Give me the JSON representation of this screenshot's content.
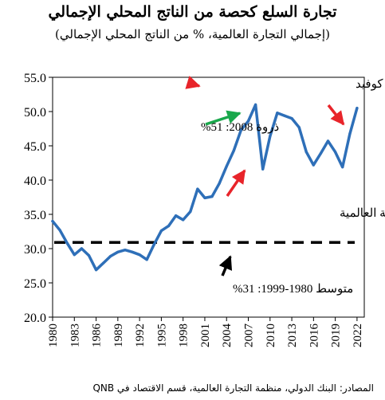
{
  "chart_data": {
    "type": "line",
    "title": "تجارة السلع كحصة من الناتج المحلي الإجمالي",
    "subtitle": "(إجمالي التجارة العالمية، % من الناتج المحلي الإجمالي)",
    "source": "المصادر: البنك الدولي، منظمة التجارة العالمية، قسم الاقتصاد في QNB",
    "ylim": [
      20,
      55
    ],
    "yticks": [
      "20.0",
      "25.0",
      "30.0",
      "35.0",
      "40.0",
      "45.0",
      "50.0",
      "55.0"
    ],
    "xlim": [
      1980,
      2023
    ],
    "xticks": [
      "1980",
      "1983",
      "1986",
      "1989",
      "1992",
      "1995",
      "1998",
      "2001",
      "2004",
      "2007",
      "2010",
      "2013",
      "2016",
      "2019",
      "2022"
    ],
    "grid": false,
    "series": [
      {
        "color": "#2e6fb8",
        "x": [
          1980,
          1981,
          1982,
          1983,
          1984,
          1985,
          1986,
          1987,
          1988,
          1989,
          1990,
          1991,
          1992,
          1993,
          1994,
          1995,
          1996,
          1997,
          1998,
          1999,
          2000,
          2001,
          2002,
          2003,
          2004,
          2005,
          2006,
          2007,
          2008,
          2009,
          2010,
          2011,
          2012,
          2013,
          2014,
          2015,
          2016,
          2017,
          2018,
          2019,
          2020,
          2021,
          2022
        ],
        "y": [
          34.0,
          32.7,
          30.8,
          29.1,
          30.0,
          29.0,
          26.9,
          27.9,
          28.9,
          29.5,
          29.8,
          29.5,
          29.1,
          28.4,
          30.6,
          32.6,
          33.3,
          34.8,
          34.2,
          35.4,
          38.7,
          37.4,
          37.6,
          39.5,
          42.0,
          44.3,
          47.3,
          48.6,
          51.0,
          41.6,
          46.4,
          49.8,
          49.4,
          49.0,
          47.7,
          44.1,
          42.2,
          43.9,
          45.7,
          44.1,
          41.9,
          46.7,
          50.5
        ]
      },
      {
        "color": "#000000",
        "x": [
          1980,
          2023
        ],
        "y": [
          30.9,
          30.9
        ]
      }
    ],
    "annotations": [
      {
        "text": "الركود والتعافي من جائحة كوفيد",
        "color": "#e8242a"
      },
      {
        "text": "ذروة 2008:  51%",
        "color": "#1aa84c"
      },
      {
        "text": "الأزمة المالية العالمية",
        "color": "#e8242a"
      },
      {
        "text": "متوسط 1980-1999:  31%",
        "color": "#000000"
      }
    ]
  }
}
